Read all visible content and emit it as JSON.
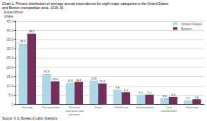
{
  "chart_data": {
    "type": "bar",
    "title": "Chart 1. Percent distribution of average annual expenditures for eight major categories in the United States\nand Boston metropolitan area, 2015-16",
    "ylabel": "Expenditure\nshare",
    "annotations": [
      "Source: U.S. Bureau of Labor Statistics."
    ],
    "categories": [
      "Housing",
      "Transportation",
      "Personal\ninsurance and\npensions",
      "Food",
      "Healthcare",
      "Entertainment",
      "Cash\ncontributions",
      "Education"
    ],
    "series": [
      {
        "name": "United States",
        "color": "#add8e6",
        "values": [
          32.9,
          16.4,
          11.6,
          12.8,
          7.8,
          5.1,
          3.4,
          2.1
        ]
      },
      {
        "name": "Boston",
        "color": "#722F5B",
        "values": [
          38.2,
          12.4,
          12.1,
          11.2,
          6.4,
          5.1,
          3.9,
          2.6
        ]
      }
    ],
    "ylim": [
      0,
      45
    ],
    "yticks": [
      0,
      {
        "value": 5,
        "label": "5.0"
      },
      {
        "value": 10,
        "label": "10.0"
      },
      {
        "value": 15,
        "label": "15.0"
      },
      {
        "value": 20,
        "label": "20.0"
      },
      {
        "value": 25,
        "label": "25.0"
      },
      {
        "value": 30,
        "label": "30.0"
      },
      {
        "value": 35,
        "label": "35.0"
      },
      {
        "value": 40,
        "label": "40.0"
      },
      {
        "value": 45,
        "label": "45.0"
      }
    ],
    "grid": true,
    "legend": "upper right",
    "data_labels": true
  }
}
